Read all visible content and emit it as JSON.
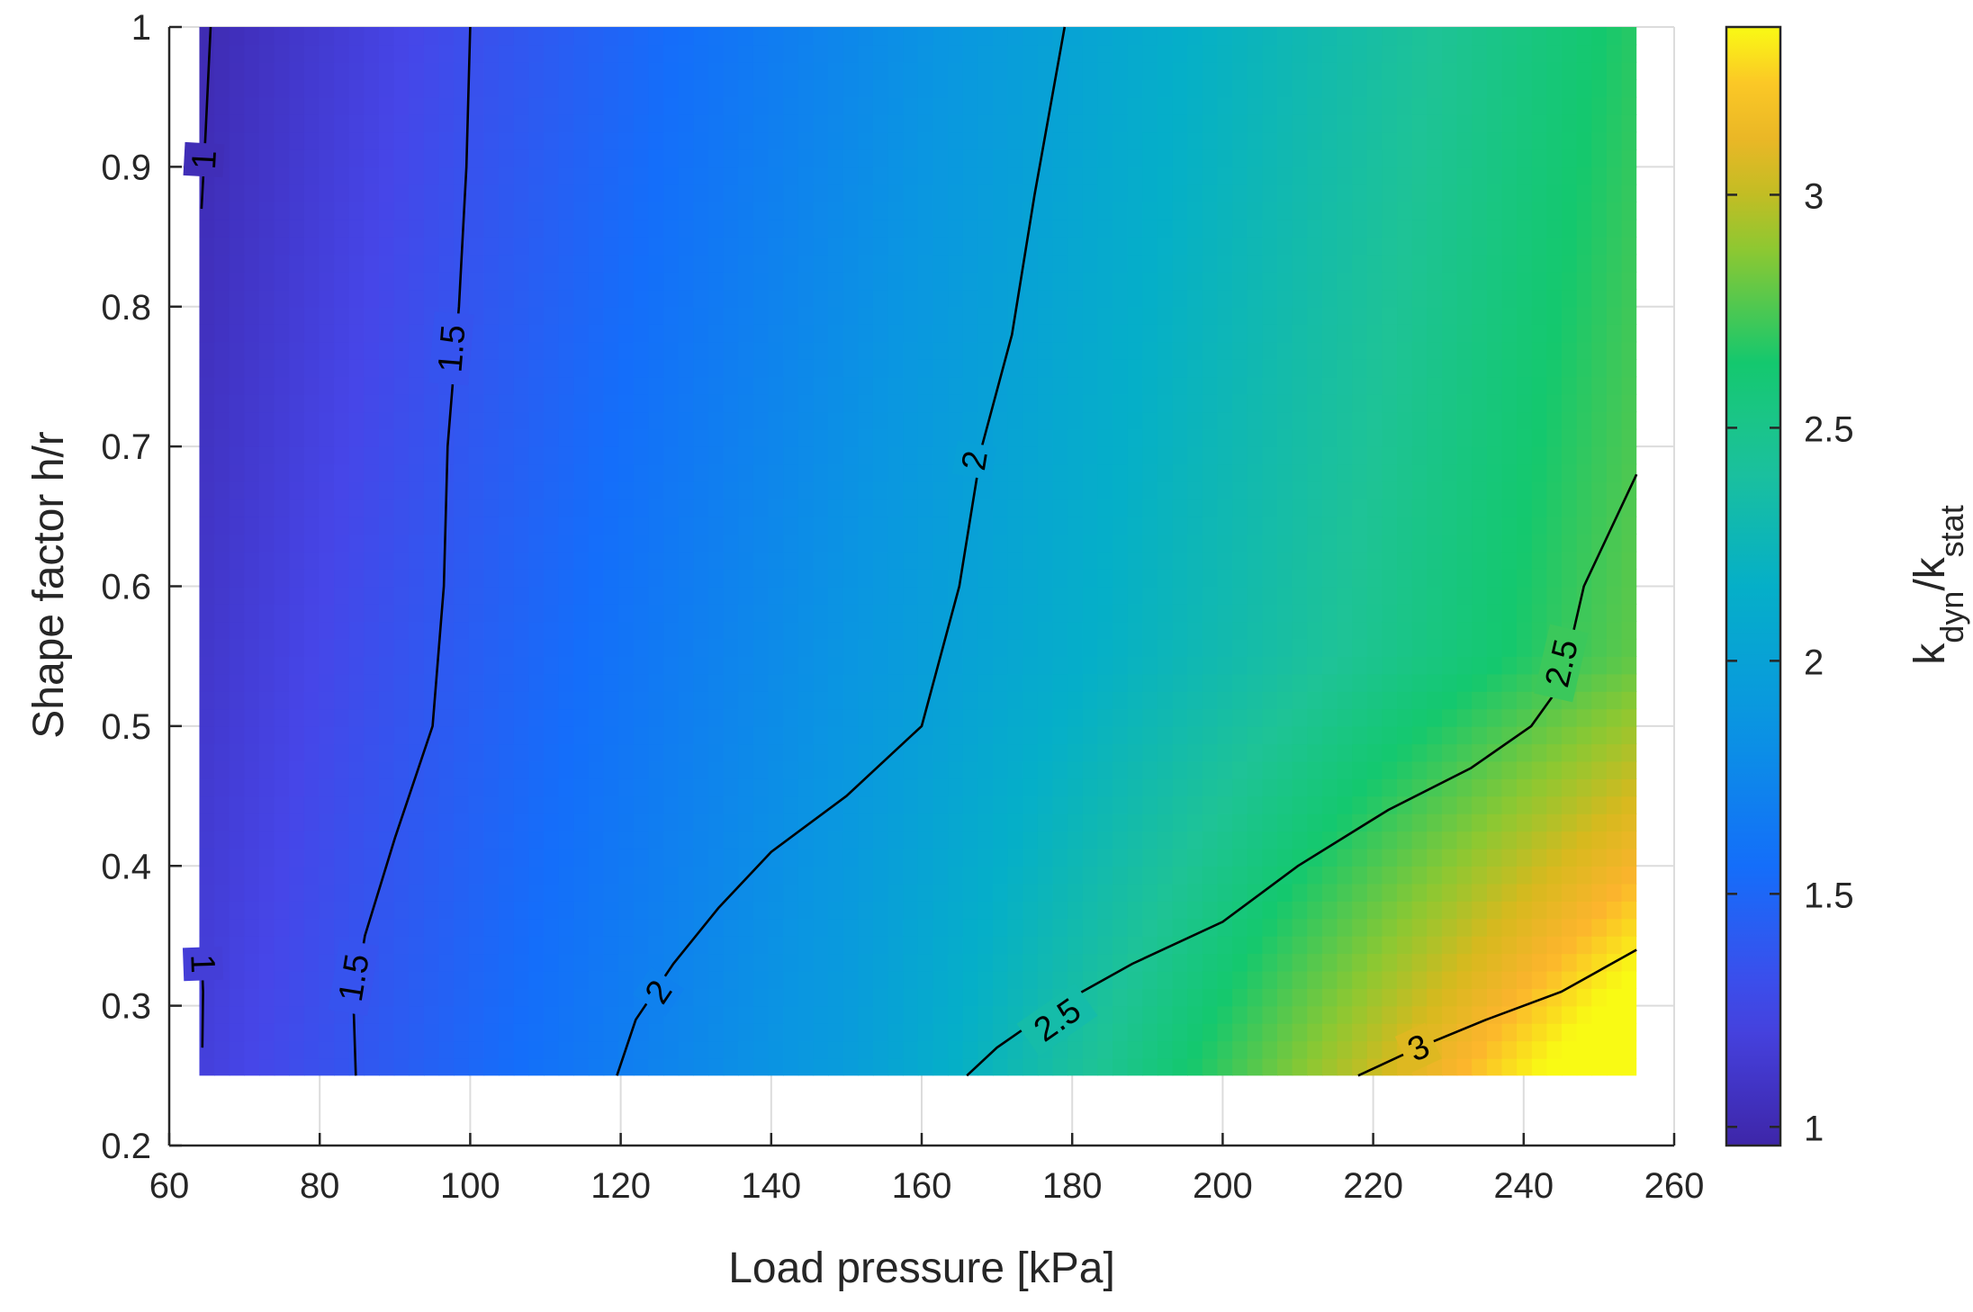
{
  "chart_data": {
    "type": "heatmap",
    "subtype": "filled-contour",
    "title": "",
    "xlabel": "Load pressure [kPa]",
    "ylabel": "Shape factor h/r",
    "xlim": [
      60,
      260
    ],
    "ylim": [
      0.2,
      1
    ],
    "xticks": [
      "60",
      "80",
      "100",
      "120",
      "140",
      "160",
      "180",
      "200",
      "220",
      "240",
      "260"
    ],
    "yticks": [
      "0.2",
      "0.3",
      "0.4",
      "0.5",
      "0.6",
      "0.7",
      "0.8",
      "0.9",
      "1"
    ],
    "grid": true,
    "data_extent": {
      "x": [
        64,
        255
      ],
      "y": [
        0.25,
        1
      ]
    },
    "colorbar": {
      "label_base": "k",
      "label_sub1": "dyn",
      "label_mid": "/k",
      "label_sub2": "stat",
      "range": [
        0.96,
        3.36
      ],
      "ticks": [
        "1",
        "1.5",
        "2",
        "2.5",
        "3"
      ],
      "colormap": "parula"
    },
    "contours": [
      {
        "level": 1,
        "segments": [
          [
            [
              65.5,
              1.0
            ],
            [
              64.8,
              0.92
            ],
            [
              64.3,
              0.87
            ]
          ],
          [
            [
              64.3,
              0.34
            ],
            [
              64.5,
              0.31
            ],
            [
              64.4,
              0.27
            ]
          ]
        ],
        "labels": [
          [
            64.6,
            0.905
          ],
          [
            64.5,
            0.33
          ]
        ]
      },
      {
        "level": 1.5,
        "segments": [
          [
            [
              100,
              1.0
            ],
            [
              99.5,
              0.9
            ],
            [
              98.5,
              0.8
            ],
            [
              97,
              0.7
            ],
            [
              96.5,
              0.6
            ],
            [
              95,
              0.5
            ],
            [
              90,
              0.42
            ],
            [
              86,
              0.35
            ],
            [
              84.5,
              0.3
            ],
            [
              84.8,
              0.25
            ]
          ]
        ],
        "labels": [
          [
            97.5,
            0.77
          ],
          [
            84.5,
            0.32
          ]
        ]
      },
      {
        "level": 2,
        "segments": [
          [
            [
              179,
              1.0
            ],
            [
              175,
              0.88
            ],
            [
              172,
              0.78
            ],
            [
              168,
              0.7
            ],
            [
              165,
              0.6
            ],
            [
              160,
              0.5
            ],
            [
              150,
              0.45
            ],
            [
              140,
              0.41
            ],
            [
              133,
              0.37
            ],
            [
              127,
              0.33
            ],
            [
              122,
              0.29
            ],
            [
              119.5,
              0.25
            ]
          ]
        ],
        "labels": [
          [
            167,
            0.69
          ],
          [
            125,
            0.31
          ]
        ]
      },
      {
        "level": 2.5,
        "segments": [
          [
            [
              255,
              0.68
            ],
            [
              248,
              0.6
            ],
            [
              245,
              0.53
            ],
            [
              241,
              0.5
            ],
            [
              233,
              0.47
            ],
            [
              222,
              0.44
            ],
            [
              210,
              0.4
            ],
            [
              200,
              0.36
            ],
            [
              188,
              0.33
            ],
            [
              178,
              0.3
            ],
            [
              170,
              0.27
            ],
            [
              166,
              0.25
            ]
          ]
        ],
        "labels": [
          [
            245,
            0.545
          ],
          [
            178,
            0.29
          ]
        ]
      },
      {
        "level": 3,
        "segments": [
          [
            [
              255,
              0.34
            ],
            [
              245,
              0.31
            ],
            [
              235,
              0.29
            ],
            [
              226,
              0.27
            ],
            [
              218,
              0.25
            ]
          ]
        ],
        "labels": [
          [
            226,
            0.27
          ]
        ]
      }
    ],
    "field_samples_note": "",
    "colors": {
      "axis": "#262626",
      "grid": "#dcdcdc",
      "contour": "#000000"
    }
  }
}
